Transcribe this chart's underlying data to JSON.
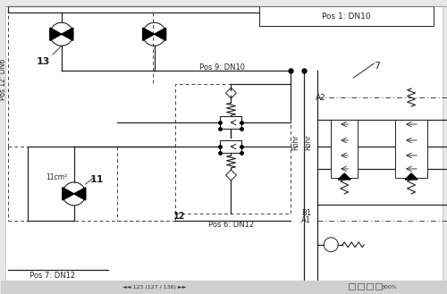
{
  "bg_color": "#e8e8e8",
  "diagram_bg": "#ffffff",
  "line_color": "#222222",
  "dash_color": "#444444",
  "labels": {
    "pos1": "Pos 1: DN10",
    "pos6": "Pos 6: DN12",
    "pos7": "Pos 7: DN12",
    "pos9": "Pos 9: DN10",
    "pos12": "Pos 12: DN6",
    "rohr1": "Rohr",
    "rohr2": "Rohr",
    "a2": "A2",
    "b1": "B1",
    "a1": "A1",
    "n13": "13",
    "n11": "11",
    "n12": "12",
    "n7": "7",
    "cm11": "11cm²"
  },
  "status_bar": "123 (127 / 136)",
  "zoom_level": "300%"
}
